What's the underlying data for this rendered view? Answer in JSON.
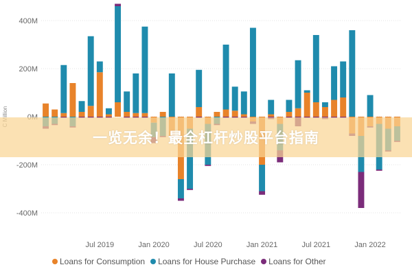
{
  "chart_data": {
    "type": "bar",
    "stacked": true,
    "ylabel": "C Million",
    "ylim": [
      -450,
      450
    ],
    "y_ticks": [
      {
        "value": 400,
        "label": "400M"
      },
      {
        "value": 200,
        "label": "200M"
      },
      {
        "value": 0,
        "label": "0M"
      },
      {
        "value": -200,
        "label": "-200M"
      },
      {
        "value": -400,
        "label": "-400M"
      }
    ],
    "x_ticks": [
      {
        "index": 6,
        "label": "Jul 2019"
      },
      {
        "index": 12,
        "label": "Jan 2020"
      },
      {
        "index": 18,
        "label": "Jul 2020"
      },
      {
        "index": 24,
        "label": "Jan 2021"
      },
      {
        "index": 30,
        "label": "Jul 2021"
      },
      {
        "index": 36,
        "label": "Jan 2022"
      }
    ],
    "n_periods": 40,
    "series": [
      {
        "name": "Loans for Consumption",
        "color": "#e8832a",
        "values": [
          55,
          30,
          15,
          140,
          20,
          45,
          185,
          10,
          60,
          20,
          15,
          15,
          -25,
          20,
          -80,
          -260,
          -50,
          40,
          -30,
          20,
          30,
          25,
          10,
          -20,
          -200,
          10,
          -30,
          20,
          35,
          100,
          60,
          40,
          70,
          80,
          -70,
          -80,
          -40,
          -30,
          -50,
          -40
        ]
      },
      {
        "name": "Loans for House Purchase",
        "color": "#1f8bad",
        "values": [
          -40,
          -30,
          200,
          -40,
          45,
          290,
          45,
          25,
          400,
          85,
          165,
          360,
          -60,
          -80,
          180,
          -80,
          -250,
          155,
          -170,
          -30,
          270,
          100,
          95,
          370,
          -110,
          60,
          -110,
          50,
          200,
          10,
          280,
          20,
          140,
          150,
          360,
          -150,
          90,
          -190,
          -90,
          -60
        ]
      },
      {
        "name": "Loans for Other",
        "color": "#7b2c7a",
        "values": [
          -10,
          -5,
          -5,
          -5,
          -5,
          -5,
          -5,
          -5,
          10,
          -5,
          -5,
          -5,
          -25,
          -5,
          -5,
          -10,
          -5,
          -5,
          -5,
          -5,
          -5,
          -5,
          -5,
          -10,
          -15,
          -10,
          -50,
          -5,
          -40,
          -5,
          -5,
          -10,
          -5,
          -5,
          -10,
          -150,
          -5,
          -5,
          -5,
          -5
        ]
      }
    ]
  },
  "legend": {
    "items": [
      {
        "label": "Loans for Consumption",
        "color": "#e8832a"
      },
      {
        "label": "Loans for House Purchase",
        "color": "#1f8bad"
      },
      {
        "label": "Loans for Other",
        "color": "#7b2c7a"
      }
    ]
  },
  "banner": {
    "text": "一览无余！最全杠杆炒股平台指南"
  }
}
